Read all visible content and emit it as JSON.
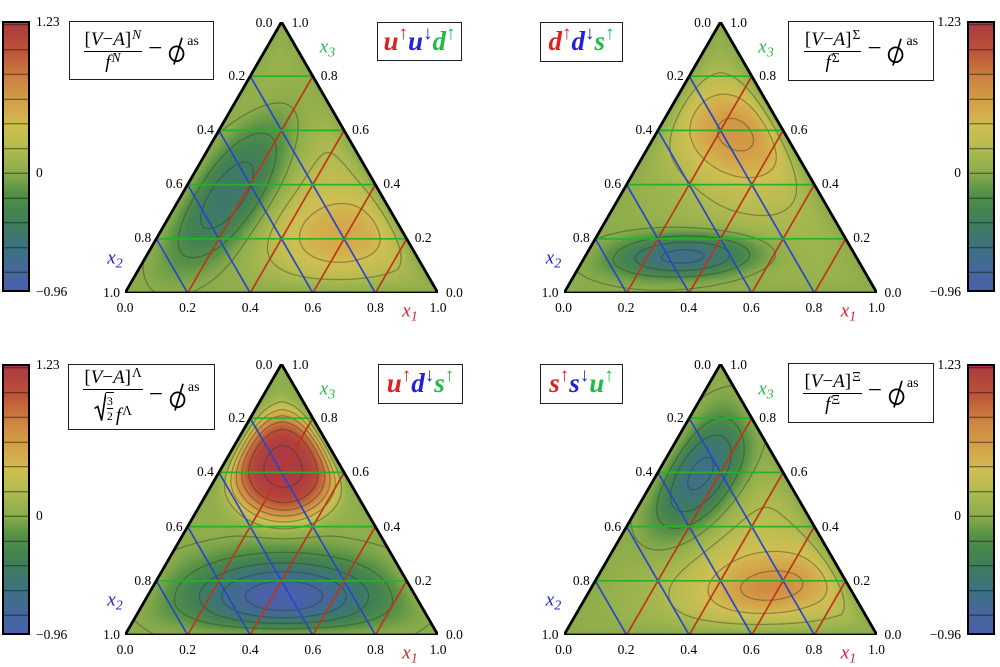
{
  "figure_type": "ternary contour plots of baryon light-cone distribution amplitudes",
  "colorbar": {
    "max_label": "1.23",
    "zero_label": "0",
    "min_label": "-0.96",
    "vmin": -0.96,
    "vmax": 1.23,
    "tick_values": [
      -0.8,
      -0.6,
      -0.4,
      -0.2,
      0,
      0.2,
      0.4,
      0.6,
      0.8,
      1.0,
      1.2
    ]
  },
  "colormap": [
    [
      -0.96,
      "#4a5fad"
    ],
    [
      -0.8,
      "#46669c"
    ],
    [
      -0.6,
      "#3d7282"
    ],
    [
      -0.45,
      "#3e7a64"
    ],
    [
      -0.3,
      "#448350"
    ],
    [
      -0.15,
      "#579245"
    ],
    [
      0.0,
      "#8aab4b"
    ],
    [
      0.12,
      "#9fb54e"
    ],
    [
      0.25,
      "#bcbc51"
    ],
    [
      0.38,
      "#cfbf52"
    ],
    [
      0.5,
      "#d4aa4b"
    ],
    [
      0.62,
      "#d29946"
    ],
    [
      0.75,
      "#cf8542"
    ],
    [
      0.88,
      "#c5693c"
    ],
    [
      1.0,
      "#bb5138"
    ],
    [
      1.12,
      "#b2423c"
    ],
    [
      1.23,
      "#ad3a45"
    ]
  ],
  "axes": {
    "x1": {
      "label": "x",
      "sub": "1",
      "color": "#d42230"
    },
    "x2": {
      "label": "x",
      "sub": "2",
      "color": "#2222dd"
    },
    "x3": {
      "label": "x",
      "sub": "3",
      "color": "#28b850"
    },
    "apex_left": "0.0",
    "apex_right": "1.0",
    "bottom_ticks": [
      "0.0",
      "0.2",
      "0.4",
      "0.6",
      "0.8",
      "1.0"
    ],
    "left_ticks": [
      "0.2",
      "0.4",
      "0.6",
      "0.8",
      "1.0"
    ],
    "right_ticks": [
      "0.8",
      "0.6",
      "0.4",
      "0.2",
      "0.0"
    ]
  },
  "grid": {
    "values": [
      0.2,
      0.4,
      0.6,
      0.8
    ],
    "color_x1": "#c03418",
    "color_x2": "#2847c8",
    "color_x3": "#2aaf2a"
  },
  "contours": {
    "step": 0.2,
    "min": -0.8,
    "max": 1.2,
    "color": "#2c3526"
  },
  "panels": [
    {
      "baryon": "N",
      "position": "top-left",
      "colorbar_side": "left",
      "formula": {
        "lb": "[",
        "v": "V",
        "minus": "−",
        "a": "A",
        "rb": "]",
        "sup": "N",
        "sup_italic": true,
        "radical": false,
        "rad_num": "3",
        "rad_den": "2",
        "den_f": "f",
        "den_sup": "N",
        "op": "−",
        "phi": "ϕ",
        "phi_sup": "as"
      },
      "quarks": [
        {
          "letter": "u",
          "arrow": "↑",
          "color": "#dd2020"
        },
        {
          "letter": "u",
          "arrow": "↓",
          "color": "#2020dd"
        },
        {
          "letter": "d",
          "arrow": "↑",
          "color": "#20bb45"
        }
      ],
      "field": {
        "background": 0.05,
        "edge_fade": 0.05,
        "blobs": [
          {
            "amp": -0.6,
            "u": 0.345,
            "w": 0.385,
            "sa": 0.235,
            "sb": 0.095,
            "theta": 58,
            "pow": 2.4
          },
          {
            "amp": 0.3,
            "u": 0.69,
            "w": 0.2,
            "sa": 0.17,
            "sb": 0.115,
            "theta": 12,
            "pow": 2.4
          },
          {
            "amp": 0.2,
            "u": 0.66,
            "w": 0.38,
            "sa": 0.3,
            "sb": 0.2,
            "theta": -60,
            "pow": 2
          }
        ]
      },
      "extrema": {
        "min": -0.49,
        "max": 0.52
      }
    },
    {
      "baryon": "Σ",
      "position": "top-right",
      "colorbar_side": "right",
      "formula": {
        "lb": "[",
        "v": "V",
        "minus": "−",
        "a": "A",
        "rb": "]",
        "sup": "Σ",
        "sup_italic": false,
        "radical": false,
        "rad_num": "3",
        "rad_den": "2",
        "den_f": "f",
        "den_sup": "Σ",
        "op": "−",
        "phi": "ϕ",
        "phi_sup": "as"
      },
      "quarks": [
        {
          "letter": "d",
          "arrow": "↑",
          "color": "#dd2020"
        },
        {
          "letter": "d",
          "arrow": "↓",
          "color": "#2020dd"
        },
        {
          "letter": "s",
          "arrow": "↑",
          "color": "#20bb45"
        }
      ],
      "field": {
        "background": 0.04,
        "edge_fade": 0.05,
        "blobs": [
          {
            "amp": 0.48,
            "u": 0.55,
            "w": 0.6,
            "sa": 0.155,
            "sb": 0.125,
            "theta": -35,
            "pow": 2.2
          },
          {
            "amp": -0.74,
            "u": 0.39,
            "w": 0.135,
            "sa": 0.165,
            "sb": 0.058,
            "theta": 3,
            "pow": 2.2
          },
          {
            "amp": 0.16,
            "u": 0.6,
            "w": 0.4,
            "sa": 0.28,
            "sb": 0.2,
            "theta": -60,
            "pow": 2
          }
        ]
      },
      "extrema": {
        "min": -0.65,
        "max": 0.64
      }
    },
    {
      "baryon": "Λ",
      "position": "bottom-left",
      "colorbar_side": "left",
      "formula": {
        "lb": "[",
        "v": "V",
        "minus": "−",
        "a": "A",
        "rb": "]",
        "sup": "Λ",
        "sup_italic": false,
        "radical": true,
        "rad_num": "3",
        "rad_den": "2",
        "den_f": "f",
        "den_sup": "Λ",
        "op": "−",
        "phi": "ϕ",
        "phi_sup": "as"
      },
      "quarks": [
        {
          "letter": "u",
          "arrow": "↑",
          "color": "#dd2020"
        },
        {
          "letter": "d",
          "arrow": "↓",
          "color": "#2020dd"
        },
        {
          "letter": "s",
          "arrow": "↑",
          "color": "#20bb45"
        }
      ],
      "field": {
        "background": 0.06,
        "edge_fade": 0.05,
        "blobs": [
          {
            "amp": 1.17,
            "u": 0.508,
            "w": 0.625,
            "sa": 0.15,
            "sb": 0.168,
            "theta": 0,
            "pow": 4
          },
          {
            "amp": -1.02,
            "u": 0.508,
            "w": 0.14,
            "sa": 0.215,
            "sb": 0.1,
            "theta": 0,
            "pow": 2
          }
        ]
      },
      "extrema": {
        "min": -0.96,
        "max": 1.23
      }
    },
    {
      "baryon": "Ξ",
      "position": "bottom-right",
      "colorbar_side": "right",
      "formula": {
        "lb": "[",
        "v": "V",
        "minus": "−",
        "a": "A",
        "rb": "]",
        "sup": "Ξ",
        "sup_italic": false,
        "radical": false,
        "rad_num": "3",
        "rad_den": "2",
        "den_f": "f",
        "den_sup": "Ξ",
        "op": "−",
        "phi": "ϕ",
        "phi_sup": "as"
      },
      "quarks": [
        {
          "letter": "s",
          "arrow": "↑",
          "color": "#dd2020"
        },
        {
          "letter": "s",
          "arrow": "↓",
          "color": "#2020dd"
        },
        {
          "letter": "u",
          "arrow": "↑",
          "color": "#20bb45"
        }
      ],
      "field": {
        "background": 0.04,
        "edge_fade": 0.05,
        "blobs": [
          {
            "amp": -0.8,
            "u": 0.435,
            "w": 0.59,
            "sa": 0.17,
            "sb": 0.09,
            "theta": 63,
            "pow": 2.2
          },
          {
            "amp": 0.55,
            "u": 0.665,
            "w": 0.175,
            "sa": 0.17,
            "sb": 0.083,
            "theta": 8,
            "pow": 1.6
          },
          {
            "amp": 0.18,
            "u": 0.6,
            "w": 0.38,
            "sa": 0.28,
            "sb": 0.2,
            "theta": -60,
            "pow": 2
          }
        ]
      },
      "extrema": {
        "min": -0.64,
        "max": 0.72
      }
    }
  ],
  "chart_data": {
    "type": "heatmap",
    "subtype": "ternary-contour-grid",
    "title": "[V-A]^B/f^B - phi^as for B = N, Sigma, Lambda, Xi",
    "layout": "2x2 grid of barycentric (x1,x2,x3) triangle plots",
    "color_range": [
      -0.96,
      1.23
    ],
    "contour_levels": [
      -0.8,
      -0.6,
      -0.4,
      -0.2,
      0,
      0.2,
      0.4,
      0.6,
      0.8,
      1.0,
      1.2
    ],
    "axis_labels": [
      "x1 (bottom, red)",
      "x2 (left, blue)",
      "x3 (right, green)"
    ],
    "axis_ticks": [
      0.0,
      0.2,
      0.4,
      0.6,
      0.8,
      1.0
    ],
    "panels": [
      {
        "baryon": "N",
        "quarks": "u-up u-down d-up",
        "min": -0.49,
        "max": 0.52,
        "description": "negative trough centred near x2~0.48,x3~0.37; positive peak near x1~0.6,x3~0.21"
      },
      {
        "baryon": "Sigma",
        "quarks": "d-up d-down s-up",
        "min": -0.65,
        "max": 0.64,
        "description": "positive peak near x3~0.6; negative trough near x1~0.32,x3~0.14"
      },
      {
        "baryon": "Lambda",
        "quarks": "u-up d-down s-up",
        "min": -0.96,
        "max": 1.23,
        "description": "strong symmetric positive peak at x3~0.62; deep negative trough at x3~0.15"
      },
      {
        "baryon": "Xi",
        "quarks": "s-up s-down u-up",
        "min": -0.64,
        "max": 0.72,
        "description": "negative trough near x3~0.6 left of centre; positive peak near x1~0.65,x3~0.18"
      }
    ]
  }
}
